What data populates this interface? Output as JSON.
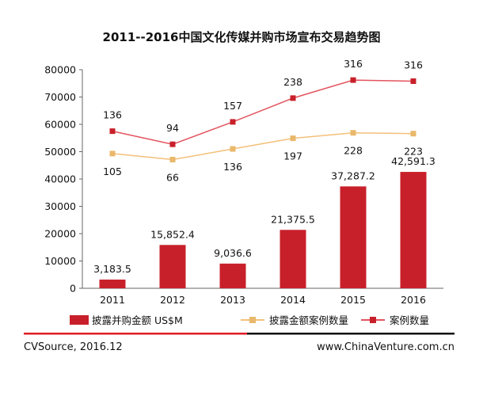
{
  "chart_data": {
    "type": "bar",
    "title": "2011--2016中国文化传媒并购市场宣布交易趋势图",
    "categories": [
      "2011",
      "2012",
      "2013",
      "2014",
      "2015",
      "2016"
    ],
    "ylim": [
      0,
      80000
    ],
    "yticks": [
      0,
      10000,
      20000,
      30000,
      40000,
      50000,
      60000,
      70000,
      80000
    ],
    "bar_series": {
      "name": "披露并购金额 US$M",
      "values": [
        3183.5,
        15852.4,
        9036.6,
        21375.5,
        37287.2,
        42591.3
      ],
      "labels": [
        "3,183.5",
        "15,852.4",
        "9,036.6",
        "21,375.5",
        "37,287.2",
        "42,591.3"
      ],
      "color": "#c8202a"
    },
    "line_series": [
      {
        "name": "披露金额案例数量",
        "counts": [
          105,
          66,
          136,
          197,
          228,
          223
        ],
        "plot_values": [
          49300,
          47100,
          51000,
          54900,
          56900,
          56600
        ],
        "label_position": "below",
        "color": "#f3c07a",
        "marker_color": "#e9b86a"
      },
      {
        "name": "案例数量",
        "counts": [
          136,
          94,
          157,
          238,
          316,
          316
        ],
        "plot_values": [
          57500,
          52700,
          60900,
          69600,
          76200,
          75800
        ],
        "label_position": "above",
        "color": "#e3545e",
        "marker_color": "#c8202a"
      }
    ]
  },
  "footer": {
    "source": "CVSource, 2016.12",
    "website": "www.ChinaVenture.com.cn"
  }
}
